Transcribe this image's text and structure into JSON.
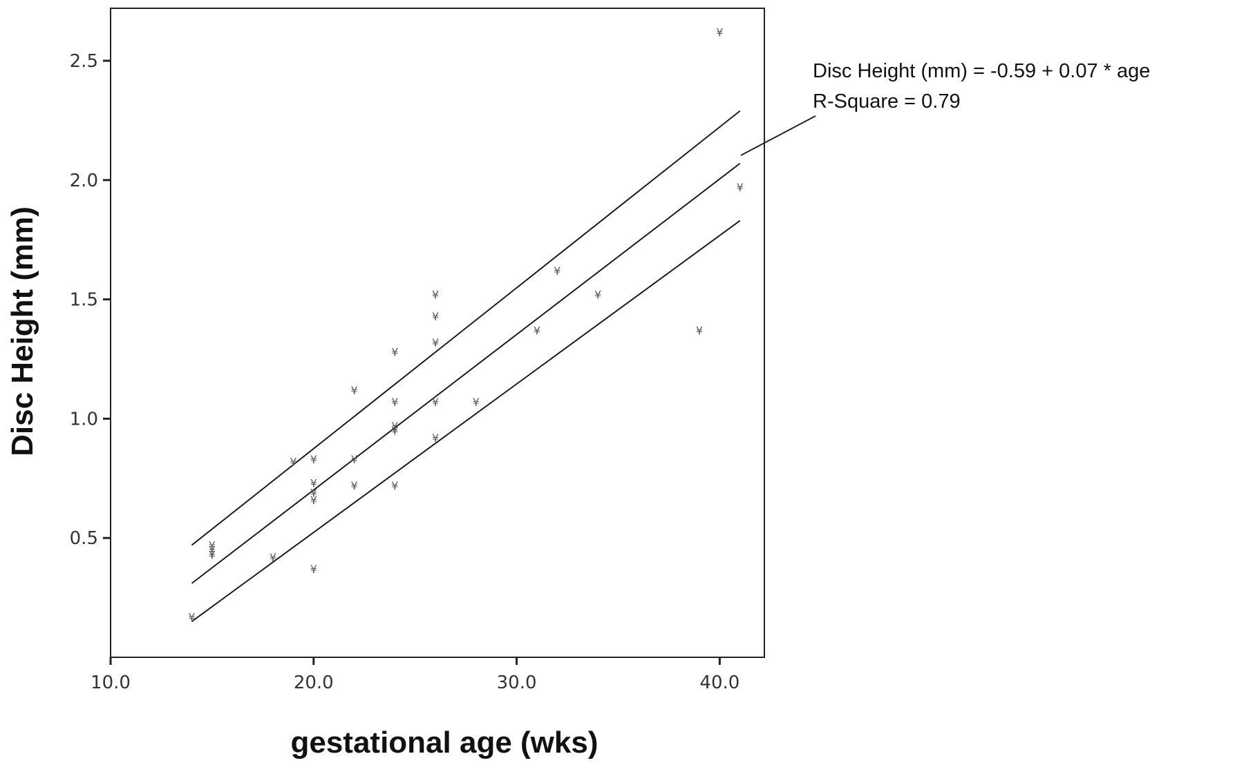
{
  "chart_data": {
    "type": "scatter",
    "title": "",
    "xlabel": "gestational age (wks)",
    "ylabel": "Disc Height (mm)",
    "xlim": [
      10.0,
      42.2
    ],
    "ylim": [
      0.0,
      2.72
    ],
    "x_ticks": [
      "10.0",
      "20.0",
      "30.0",
      "40.0"
    ],
    "y_ticks": [
      "0.5",
      "1.0",
      "1.5",
      "2.0",
      "2.5"
    ],
    "marker_glyph": "¥",
    "points": [
      {
        "x": 14,
        "y": 0.17
      },
      {
        "x": 15,
        "y": 0.43
      },
      {
        "x": 15,
        "y": 0.45
      },
      {
        "x": 15,
        "y": 0.47
      },
      {
        "x": 18,
        "y": 0.42
      },
      {
        "x": 19,
        "y": 0.82
      },
      {
        "x": 20,
        "y": 0.83
      },
      {
        "x": 20,
        "y": 0.73
      },
      {
        "x": 20,
        "y": 0.69
      },
      {
        "x": 20,
        "y": 0.66
      },
      {
        "x": 20,
        "y": 0.37
      },
      {
        "x": 22,
        "y": 1.12
      },
      {
        "x": 22,
        "y": 0.83
      },
      {
        "x": 22,
        "y": 0.72
      },
      {
        "x": 24,
        "y": 1.28
      },
      {
        "x": 24,
        "y": 1.07
      },
      {
        "x": 24,
        "y": 0.97
      },
      {
        "x": 24,
        "y": 0.95
      },
      {
        "x": 24,
        "y": 0.72
      },
      {
        "x": 26,
        "y": 1.52
      },
      {
        "x": 26,
        "y": 1.43
      },
      {
        "x": 26,
        "y": 1.32
      },
      {
        "x": 26,
        "y": 1.07
      },
      {
        "x": 26,
        "y": 0.92
      },
      {
        "x": 28,
        "y": 1.07
      },
      {
        "x": 31,
        "y": 1.37
      },
      {
        "x": 32,
        "y": 1.62
      },
      {
        "x": 34,
        "y": 1.52
      },
      {
        "x": 39,
        "y": 1.37
      },
      {
        "x": 40,
        "y": 2.62
      },
      {
        "x": 41,
        "y": 1.97
      }
    ],
    "fit_line": {
      "x": [
        14,
        41
      ],
      "y": [
        0.31,
        2.07
      ]
    },
    "upper_ci": {
      "x": [
        14,
        41
      ],
      "y": [
        0.47,
        2.29
      ]
    },
    "lower_ci": {
      "x": [
        14,
        41
      ],
      "y": [
        0.15,
        1.83
      ]
    },
    "annotation": {
      "equation": "Disc Height (mm) = -0.59 + 0.07 * age",
      "r_square": "R-Square = 0.79"
    }
  }
}
